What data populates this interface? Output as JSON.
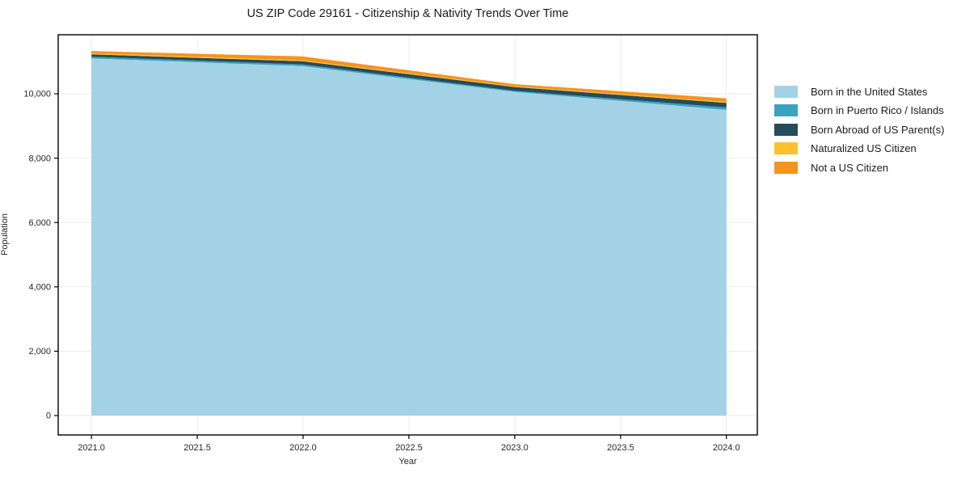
{
  "chart": {
    "title": "US ZIP Code 29161 - Citizenship & Nativity Trends Over Time",
    "xlabel": "Year",
    "ylabel": "Population"
  },
  "chart_data": {
    "type": "area",
    "stacked": true,
    "title": "US ZIP Code 29161 - Citizenship & Nativity Trends Over Time",
    "xlabel": "Year",
    "ylabel": "Population",
    "x": [
      2021,
      2022,
      2023,
      2024
    ],
    "series": [
      {
        "name": "Born in the United States",
        "color": "#A3D2E7",
        "values": [
          11100,
          10860,
          10060,
          9500
        ]
      },
      {
        "name": "Born in Puerto Rico / Islands",
        "color": "#3AA3BF",
        "values": [
          50,
          50,
          30,
          75
        ]
      },
      {
        "name": "Born Abroad of US Parent(s)",
        "color": "#254B5C",
        "values": [
          75,
          100,
          120,
          140
        ]
      },
      {
        "name": "Naturalized US Citizen",
        "color": "#FCC12D",
        "values": [
          30,
          30,
          20,
          30
        ]
      },
      {
        "name": "Not a US Citizen",
        "color": "#F6931E",
        "values": [
          75,
          120,
          70,
          115
        ]
      }
    ],
    "stack_totals": [
      11330,
      11160,
      10300,
      9860
    ],
    "x_ticks": [
      {
        "v": 2021.0,
        "label": "2021.0"
      },
      {
        "v": 2021.5,
        "label": "2021.5"
      },
      {
        "v": 2022.0,
        "label": "2022.0"
      },
      {
        "v": 2022.5,
        "label": "2022.5"
      },
      {
        "v": 2023.0,
        "label": "2023.0"
      },
      {
        "v": 2023.5,
        "label": "2023.5"
      },
      {
        "v": 2024.0,
        "label": "2024.0"
      }
    ],
    "y_ticks": [
      {
        "v": 0,
        "label": "0"
      },
      {
        "v": 2000,
        "label": "2,000"
      },
      {
        "v": 4000,
        "label": "4,000"
      },
      {
        "v": 6000,
        "label": "6,000"
      },
      {
        "v": 8000,
        "label": "8,000"
      },
      {
        "v": 10000,
        "label": "10,000"
      }
    ],
    "xlim": [
      2020.843,
      2024.146
    ],
    "ylim": [
      -603,
      11834
    ],
    "grid": true,
    "legend_position": "right-outside",
    "colors": {
      "grid": "#ebebeb",
      "spine": "#000000",
      "tick_text": "#262626",
      "title_text": "#1a1a1a"
    }
  }
}
